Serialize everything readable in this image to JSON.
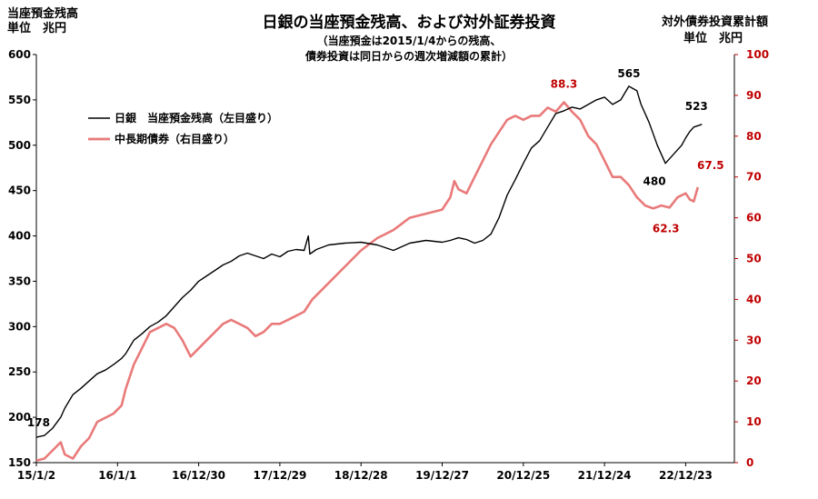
{
  "chart_data": {
    "type": "line",
    "title": "日銀の当座預金残高、および対外証券投資",
    "subtitle": [
      "（当座預金は2015/1/4からの残高、",
      "債券投資は同日からの週次増減額の累計）"
    ],
    "left_axis": {
      "label": [
        "当座預金残高",
        "単位　兆円"
      ],
      "ylim": [
        150,
        600
      ],
      "ticks": [
        150,
        200,
        250,
        300,
        350,
        400,
        450,
        500,
        550,
        600
      ]
    },
    "right_axis": {
      "label": [
        "対外債券投資累計額",
        "単位　兆円"
      ],
      "ylim": [
        0,
        100
      ],
      "ticks": [
        0,
        10,
        20,
        30,
        40,
        50,
        60,
        70,
        80,
        90,
        100
      ]
    },
    "x_tick_labels": [
      "15/1/2",
      "16/1/1",
      "16/12/30",
      "17/12/29",
      "18/12/28",
      "19/12/27",
      "20/12/25",
      "21/12/24",
      "22/12/23"
    ],
    "legend_position": "upper-left",
    "series": [
      {
        "name": "日銀　当座預金残高（左目盛り）",
        "axis": "left",
        "color": "#000000",
        "x": [
          0,
          0.1,
          0.2,
          0.3,
          0.35,
          0.45,
          0.55,
          0.65,
          0.75,
          0.85,
          0.95,
          1.05,
          1.1,
          1.2,
          1.3,
          1.4,
          1.5,
          1.6,
          1.7,
          1.8,
          1.9,
          2.0,
          2.1,
          2.2,
          2.3,
          2.4,
          2.5,
          2.6,
          2.7,
          2.8,
          2.9,
          3.0,
          3.1,
          3.2,
          3.3,
          3.35,
          3.37,
          3.45,
          3.6,
          3.8,
          4.0,
          4.2,
          4.4,
          4.6,
          4.8,
          5.0,
          5.1,
          5.2,
          5.3,
          5.4,
          5.5,
          5.6,
          5.7,
          5.8,
          5.9,
          6.0,
          6.1,
          6.2,
          6.3,
          6.4,
          6.5,
          6.6,
          6.7,
          6.8,
          6.9,
          7.0,
          7.1,
          7.2,
          7.3,
          7.4,
          7.45,
          7.55,
          7.65,
          7.75,
          7.85,
          7.95,
          8.0,
          8.05,
          8.1,
          8.2
        ],
        "values": [
          178,
          180,
          188,
          200,
          210,
          225,
          232,
          240,
          248,
          252,
          258,
          265,
          270,
          285,
          292,
          300,
          305,
          312,
          322,
          332,
          340,
          350,
          356,
          362,
          368,
          372,
          378,
          381,
          378,
          375,
          380,
          377,
          383,
          385,
          384,
          400,
          380,
          385,
          390,
          392,
          393,
          390,
          384,
          392,
          395,
          393,
          395,
          398,
          396,
          392,
          395,
          402,
          420,
          445,
          462,
          480,
          497,
          505,
          520,
          535,
          538,
          542,
          540,
          545,
          550,
          553,
          545,
          550,
          565,
          560,
          545,
          525,
          500,
          480,
          490,
          500,
          508,
          515,
          520,
          523
        ]
      },
      {
        "name": "中長期債券（右目盛り）",
        "axis": "right",
        "color": "#e97a7a",
        "x": [
          0,
          0.1,
          0.2,
          0.3,
          0.35,
          0.45,
          0.55,
          0.65,
          0.75,
          0.85,
          0.95,
          1.05,
          1.1,
          1.2,
          1.3,
          1.4,
          1.5,
          1.6,
          1.7,
          1.8,
          1.9,
          2.0,
          2.1,
          2.2,
          2.3,
          2.4,
          2.5,
          2.6,
          2.7,
          2.8,
          2.9,
          3.0,
          3.1,
          3.2,
          3.3,
          3.4,
          3.5,
          3.6,
          3.8,
          4.0,
          4.2,
          4.4,
          4.6,
          4.8,
          5.0,
          5.1,
          5.15,
          5.2,
          5.3,
          5.4,
          5.5,
          5.6,
          5.7,
          5.8,
          5.9,
          6.0,
          6.1,
          6.2,
          6.3,
          6.4,
          6.5,
          6.6,
          6.7,
          6.8,
          6.9,
          7.0,
          7.1,
          7.2,
          7.3,
          7.4,
          7.5,
          7.6,
          7.7,
          7.8,
          7.9,
          8.0,
          8.05,
          8.1,
          8.15
        ],
        "values": [
          0.5,
          1,
          3,
          5,
          2,
          1,
          4,
          6,
          10,
          11,
          12,
          14,
          18,
          24,
          28,
          32,
          33,
          34,
          33,
          30,
          26,
          28,
          30,
          32,
          34,
          35,
          34,
          33,
          31,
          32,
          34,
          34,
          35,
          36,
          37,
          40,
          42,
          44,
          48,
          52,
          55,
          57,
          60,
          61,
          62,
          65,
          69,
          67,
          66,
          70,
          74,
          78,
          81,
          84,
          85,
          84,
          85,
          85,
          87,
          86,
          88.3,
          86,
          84,
          80,
          78,
          74,
          70,
          70,
          68,
          65,
          63,
          62.3,
          63,
          62.5,
          65,
          66,
          64.5,
          64,
          67.5
        ]
      }
    ],
    "annotations": [
      {
        "text": "178",
        "series": 0,
        "x": 0.05,
        "y": 178
      },
      {
        "text": "565",
        "series": 0,
        "x": 7.3,
        "y": 565
      },
      {
        "text": "523",
        "series": 0,
        "x": 8.2,
        "y": 523
      },
      {
        "text": "480",
        "series": 0,
        "x": 7.75,
        "y": 480
      },
      {
        "text": "88.3",
        "series": 1,
        "x": 6.5,
        "y": 88.3
      },
      {
        "text": "67.5",
        "series": 1,
        "x": 8.15,
        "y": 67.5
      },
      {
        "text": "62.3",
        "series": 1,
        "x": 7.6,
        "y": 62.3
      }
    ]
  }
}
